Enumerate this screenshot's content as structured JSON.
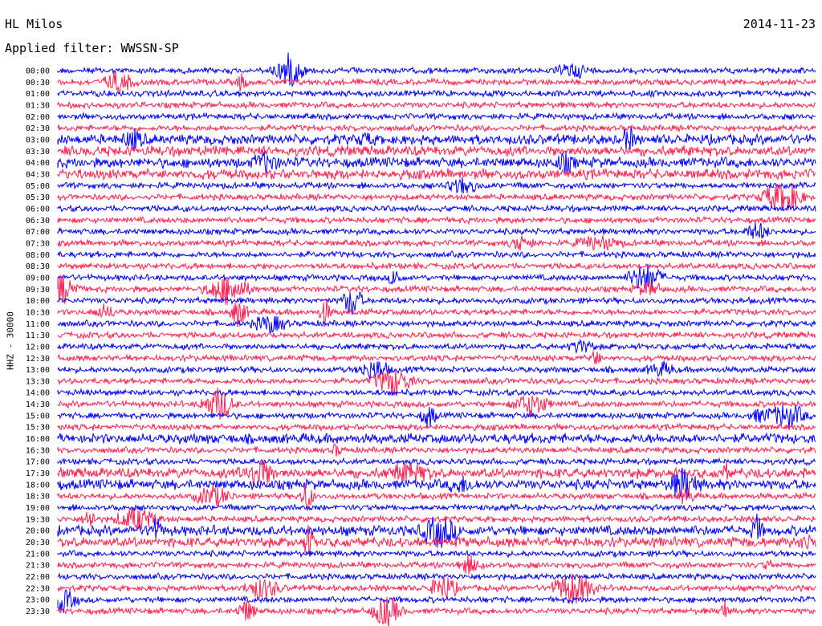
{
  "header": {
    "station": "HL Milos",
    "date": "2014-11-23",
    "filter": "Applied filter: WWSSN-SP"
  },
  "axis": {
    "ylabel": "HHZ - 30000"
  },
  "colors": {
    "trace_a": "#0000ff",
    "trace_b": "#ff1f4f",
    "background": "#ffffff"
  },
  "chart_data": {
    "type": "line",
    "title": "",
    "xlabel": "",
    "ylabel": "HHZ - 30000",
    "grid": false,
    "legend": "none",
    "description_of_series": "helicorder, one trace per 30-minute interval, alternating colors",
    "rows": [
      "00:00",
      "00:30",
      "01:00",
      "01:30",
      "02:00",
      "02:30",
      "03:00",
      "03:30",
      "04:00",
      "04:30",
      "05:00",
      "05:30",
      "06:00",
      "06:30",
      "07:00",
      "07:30",
      "08:00",
      "08:30",
      "09:00",
      "09:30",
      "10:00",
      "10:30",
      "11:00",
      "11:30",
      "12:00",
      "12:30",
      "13:00",
      "13:30",
      "14:00",
      "14:30",
      "15:00",
      "15:30",
      "16:00",
      "16:30",
      "17:00",
      "17:30",
      "18:00",
      "18:30",
      "19:00",
      "19:30",
      "20:00",
      "20:30",
      "21:00",
      "21:30",
      "22:00",
      "22:30",
      "23:00",
      "23:30"
    ],
    "row_colors": [
      "trace_a",
      "trace_b"
    ],
    "noisy_intervals": [
      "03:00",
      "03:30",
      "04:00",
      "04:30",
      "16:00",
      "17:30",
      "18:00",
      "20:00",
      "20:30"
    ]
  }
}
